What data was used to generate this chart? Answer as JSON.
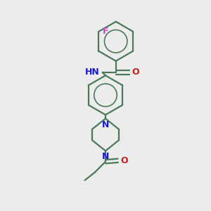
{
  "bg_color": "#ececec",
  "bond_color": "#4a7a5a",
  "N_color": "#1a1acc",
  "O_color": "#cc1a1a",
  "F_color": "#cc44cc",
  "line_width": 1.6,
  "figsize": [
    3.0,
    3.0
  ],
  "dpi": 100,
  "xlim": [
    0,
    10
  ],
  "ylim": [
    0,
    10
  ]
}
